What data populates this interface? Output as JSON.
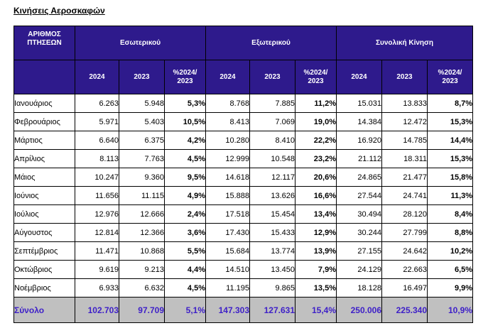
{
  "title": "Κινήσεις Αεροσκαφών",
  "headers": {
    "row_label": "ΑΡΙΘΜΟΣ ΠΤΗΣΕΩΝ",
    "groups": [
      "Εσωτερικού",
      "Εξωτερικού",
      "Συνολική Κίνηση"
    ],
    "year_a": "2024",
    "year_b": "2023",
    "pct_line1": "%2024/",
    "pct_line2": "2023"
  },
  "rows": [
    {
      "month": "Ιανουάριος",
      "d24": "6.263",
      "d23": "5.948",
      "dp": "5,3%",
      "i24": "8.768",
      "i23": "7.885",
      "ip": "11,2%",
      "t24": "15.031",
      "t23": "13.833",
      "tp": "8,7%"
    },
    {
      "month": "Φεβρουάριος",
      "d24": "5.971",
      "d23": "5.403",
      "dp": "10,5%",
      "i24": "8.413",
      "i23": "7.069",
      "ip": "19,0%",
      "t24": "14.384",
      "t23": "12.472",
      "tp": "15,3%"
    },
    {
      "month": "Μάρτιος",
      "d24": "6.640",
      "d23": "6.375",
      "dp": "4,2%",
      "i24": "10.280",
      "i23": "8.410",
      "ip": "22,2%",
      "t24": "16.920",
      "t23": "14.785",
      "tp": "14,4%"
    },
    {
      "month": "Απρίλιος",
      "d24": "8.113",
      "d23": "7.763",
      "dp": "4,5%",
      "i24": "12.999",
      "i23": "10.548",
      "ip": "23,2%",
      "t24": "21.112",
      "t23": "18.311",
      "tp": "15,3%"
    },
    {
      "month": "Μάιος",
      "d24": "10.247",
      "d23": "9.360",
      "dp": "9,5%",
      "i24": "14.618",
      "i23": "12.117",
      "ip": "20,6%",
      "t24": "24.865",
      "t23": "21.477",
      "tp": "15,8%"
    },
    {
      "month": "Ιούνιος",
      "d24": "11.656",
      "d23": "11.115",
      "dp": "4,9%",
      "i24": "15.888",
      "i23": "13.626",
      "ip": "16,6%",
      "t24": "27.544",
      "t23": "24.741",
      "tp": "11,3%"
    },
    {
      "month": "Ιούλιος",
      "d24": "12.976",
      "d23": "12.666",
      "dp": "2,4%",
      "i24": "17.518",
      "i23": "15.454",
      "ip": "13,4%",
      "t24": "30.494",
      "t23": "28.120",
      "tp": "8,4%"
    },
    {
      "month": "Αύγουστος",
      "d24": "12.814",
      "d23": "12.366",
      "dp": "3,6%",
      "i24": "17.430",
      "i23": "15.433",
      "ip": "12,9%",
      "t24": "30.244",
      "t23": "27.799",
      "tp": "8,8%"
    },
    {
      "month": "Σεπτέμβριος",
      "d24": "11.471",
      "d23": "10.868",
      "dp": "5,5%",
      "i24": "15.684",
      "i23": "13.774",
      "ip": "13,9%",
      "t24": "27.155",
      "t23": "24.642",
      "tp": "10,2%"
    },
    {
      "month": "Οκτώβριος",
      "d24": "9.619",
      "d23": "9.213",
      "dp": "4,4%",
      "i24": "14.510",
      "i23": "13.450",
      "ip": "7,9%",
      "t24": "24.129",
      "t23": "22.663",
      "tp": "6,5%"
    },
    {
      "month": "Νοέμβριος",
      "d24": "6.933",
      "d23": "6.632",
      "dp": "4,5%",
      "i24": "11.195",
      "i23": "9.865",
      "ip": "13,5%",
      "t24": "18.128",
      "t23": "16.497",
      "tp": "9,9%"
    }
  ],
  "total": {
    "month": "Σύνολο",
    "d24": "102.703",
    "d23": "97.709",
    "dp": "5,1%",
    "i24": "147.303",
    "i23": "127.631",
    "ip": "15,4%",
    "t24": "250.006",
    "t23": "225.340",
    "tp": "10,9%"
  },
  "colors": {
    "header_bg": "#2e1a8c",
    "header_text": "#ffffff",
    "total_bg": "#c0c0c0",
    "total_text": "#3d1fc8"
  }
}
